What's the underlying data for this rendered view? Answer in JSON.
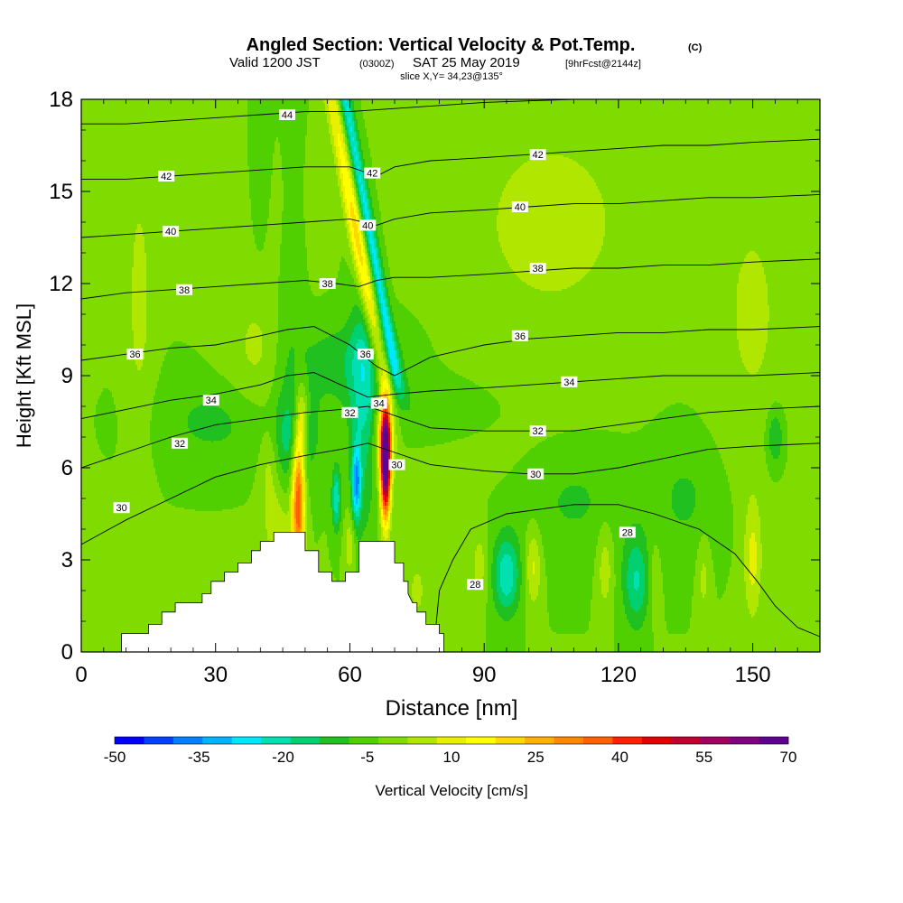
{
  "chart_data": {
    "type": "heatmap",
    "title": "Angled Section: Vertical Velocity & Pot.Temp.",
    "title_mark": "(C)",
    "subtitle": {
      "valid_prefix": "Valid 1200 JST",
      "utc": "(0300Z)",
      "date": "SAT 25 May 2019",
      "forecast": "[9hrFcst@2144z]"
    },
    "slice": "slice X,Y= 34,23@135°",
    "xlabel": "Distance [nm]",
    "ylabel": "Height [Kft MSL]",
    "xlim": [
      0,
      165
    ],
    "ylim": [
      0,
      18
    ],
    "x_ticks": [
      0,
      30,
      60,
      90,
      120,
      150
    ],
    "y_ticks": [
      0,
      3,
      6,
      9,
      12,
      15,
      18
    ],
    "colorbar": {
      "label": "Vertical Velocity [cm/s]",
      "tick_labels": [
        "-50",
        "-35",
        "-20",
        "-5",
        "10",
        "25",
        "40",
        "55",
        "70"
      ],
      "tick_values": [
        -50,
        -35,
        -20,
        -5,
        10,
        25,
        40,
        55,
        70
      ],
      "colors": [
        "#0000ff",
        "#0040ff",
        "#0080ff",
        "#00b4ff",
        "#00e8ff",
        "#00e0b0",
        "#00d070",
        "#20c020",
        "#50d000",
        "#80dc00",
        "#b0e600",
        "#e8f000",
        "#ffff00",
        "#ffd800",
        "#ffb000",
        "#ff8800",
        "#ff6000",
        "#ff2000",
        "#e00000",
        "#c00030",
        "#a00060",
        "#800080",
        "#600090"
      ]
    },
    "background_field_value": -3,
    "velocity_features": [
      {
        "x": 13,
        "y": 11.5,
        "sx": 3,
        "sy": 4.5,
        "value": 7
      },
      {
        "x": 43,
        "y": 13.5,
        "sx": 7,
        "sy": 3.5,
        "value": 7
      },
      {
        "x": 105,
        "y": 14,
        "sx": 22,
        "sy": 4,
        "value": 7
      },
      {
        "x": 150,
        "y": 11,
        "sx": 9,
        "sy": 5,
        "value": 6
      },
      {
        "x": 40,
        "y": 9.5,
        "sx": 8,
        "sy": 2,
        "value": 6
      },
      {
        "x": 44,
        "y": 4,
        "sx": 3,
        "sy": 1.2,
        "value": 9
      },
      {
        "x": 8,
        "y": 1.5,
        "sx": 5,
        "sy": 1.5,
        "value": 5
      },
      {
        "x": 90,
        "y": 8,
        "sx": 25,
        "sy": 2,
        "value": 4
      },
      {
        "x": 46,
        "y": 12,
        "sx": 4,
        "sy": 5,
        "value": -8
      },
      {
        "x": 40,
        "y": 15,
        "sx": 2.5,
        "sy": 3,
        "value": -8
      },
      {
        "x": 60,
        "y": 9.5,
        "sx": 14,
        "sy": 1.3,
        "value": -9
      },
      {
        "x": 80,
        "y": 8,
        "sx": 20,
        "sy": 1.2,
        "value": -7
      },
      {
        "x": 30,
        "y": 7.5,
        "sx": 12,
        "sy": 1.3,
        "value": -7
      },
      {
        "x": 63,
        "y": 8,
        "sx": 3,
        "sy": 4,
        "value": -14
      },
      {
        "x": 48,
        "y": 7,
        "sx": 5,
        "sy": 1.5,
        "value": -12
      },
      {
        "x": 95,
        "y": 2.5,
        "sx": 3,
        "sy": 1.3,
        "value": -20
      },
      {
        "x": 124,
        "y": 2.3,
        "sx": 3,
        "sy": 1.5,
        "value": -16
      },
      {
        "x": 155,
        "y": 7,
        "sx": 2,
        "sy": 1,
        "value": -12
      },
      {
        "x": 110,
        "y": 5,
        "sx": 12,
        "sy": 2,
        "value": -6
      },
      {
        "x": 135,
        "y": 5,
        "sx": 8,
        "sy": 2,
        "value": -6
      },
      {
        "x": 101,
        "y": 2.8,
        "sx": 1.8,
        "sy": 1.3,
        "value": 12
      },
      {
        "x": 117,
        "y": 2.8,
        "sx": 1.8,
        "sy": 1.5,
        "value": 9
      },
      {
        "x": 89,
        "y": 2.8,
        "sx": 1.8,
        "sy": 1.2,
        "value": 8
      },
      {
        "x": 150,
        "y": 3,
        "sx": 2,
        "sy": 2,
        "value": 12
      },
      {
        "x": 139,
        "y": 2.5,
        "sx": 1.5,
        "sy": 1.5,
        "value": 7
      },
      {
        "x": 128,
        "y": 2.5,
        "sx": 1.5,
        "sy": 1.5,
        "value": 5
      },
      {
        "x": 42,
        "y": 6,
        "sx": 2,
        "sy": 1.5,
        "value": 8
      },
      {
        "x": 60,
        "y": 3.5,
        "sx": 1.2,
        "sy": 1,
        "value": 10
      },
      {
        "x": 75,
        "y": 2,
        "sx": 2,
        "sy": 1,
        "value": 7
      },
      {
        "x": 48.5,
        "y": 5,
        "sx": 1.4,
        "sy": 2.5,
        "value": 42
      },
      {
        "x": 49.5,
        "y": 7.5,
        "sx": 1.2,
        "sy": 1.2,
        "value": 15
      },
      {
        "x": 68,
        "y": 6.2,
        "sx": 1.1,
        "sy": 1.8,
        "value": 78
      },
      {
        "x": 68,
        "y": 7.2,
        "sx": 2.2,
        "sy": 1.3,
        "value": 20
      },
      {
        "x": 61.5,
        "y": 5.5,
        "sx": 1,
        "sy": 1.2,
        "value": -28
      },
      {
        "x": 57,
        "y": 5,
        "sx": 1,
        "sy": 1,
        "value": -20
      }
    ],
    "jet": [
      {
        "y": 8.5,
        "x": 68
      },
      {
        "y": 18,
        "x": 56
      }
    ],
    "jet_center_value": 25,
    "jet_wing": {
      "offset": 3,
      "value": -22
    },
    "theta_contours": [
      {
        "label": "28",
        "points": [
          [
            79,
            0.5
          ],
          [
            80,
            2
          ],
          [
            83,
            3
          ],
          [
            87,
            4
          ],
          [
            95,
            4.5
          ],
          [
            110,
            4.8
          ],
          [
            120,
            4.8
          ],
          [
            128,
            4.5
          ],
          [
            138,
            4
          ],
          [
            146,
            3.2
          ],
          [
            151,
            2.3
          ],
          [
            155,
            1.5
          ],
          [
            160,
            0.8
          ],
          [
            165,
            0.5
          ]
        ],
        "labels_at": [
          [
            88,
            2.2
          ],
          [
            122,
            3.9
          ]
        ]
      },
      {
        "label": "30",
        "points": [
          [
            0,
            3.5
          ],
          [
            10,
            4.3
          ],
          [
            20,
            5
          ],
          [
            30,
            5.7
          ],
          [
            40,
            6.1
          ],
          [
            50,
            6.4
          ],
          [
            58,
            6.6
          ],
          [
            64,
            6.8
          ],
          [
            70,
            6.5
          ],
          [
            78,
            6.1
          ],
          [
            90,
            5.9
          ],
          [
            100,
            5.8
          ],
          [
            110,
            5.8
          ],
          [
            120,
            6
          ],
          [
            130,
            6.3
          ],
          [
            140,
            6.6
          ],
          [
            150,
            6.7
          ],
          [
            165,
            6.8
          ]
        ],
        "labels_at": [
          [
            9,
            4.7
          ],
          [
            70.5,
            6.1
          ],
          [
            101.5,
            5.8
          ]
        ]
      },
      {
        "label": "32",
        "points": [
          [
            0,
            6
          ],
          [
            10,
            6.5
          ],
          [
            20,
            7
          ],
          [
            30,
            7.4
          ],
          [
            40,
            7.6
          ],
          [
            50,
            7.8
          ],
          [
            58,
            7.9
          ],
          [
            64,
            8
          ],
          [
            70,
            7.7
          ],
          [
            78,
            7.3
          ],
          [
            90,
            7.2
          ],
          [
            100,
            7.2
          ],
          [
            110,
            7.2
          ],
          [
            120,
            7.4
          ],
          [
            130,
            7.6
          ],
          [
            140,
            7.8
          ],
          [
            150,
            7.9
          ],
          [
            165,
            8
          ]
        ],
        "labels_at": [
          [
            22,
            6.8
          ],
          [
            60,
            7.8
          ],
          [
            102,
            7.2
          ]
        ]
      },
      {
        "label": "34",
        "points": [
          [
            0,
            7.6
          ],
          [
            10,
            7.9
          ],
          [
            20,
            8.2
          ],
          [
            30,
            8.4
          ],
          [
            40,
            8.7
          ],
          [
            46,
            9
          ],
          [
            52,
            9.1
          ],
          [
            58,
            8.7
          ],
          [
            64,
            8.3
          ],
          [
            70,
            8.4
          ],
          [
            78,
            8.5
          ],
          [
            90,
            8.6
          ],
          [
            100,
            8.7
          ],
          [
            110,
            8.8
          ],
          [
            120,
            8.9
          ],
          [
            130,
            9
          ],
          [
            140,
            9
          ],
          [
            150,
            9
          ],
          [
            165,
            9.1
          ]
        ],
        "labels_at": [
          [
            29,
            8.2
          ],
          [
            66.5,
            8.1
          ],
          [
            109,
            8.8
          ]
        ]
      },
      {
        "label": "36",
        "points": [
          [
            0,
            9.5
          ],
          [
            10,
            9.7
          ],
          [
            20,
            9.9
          ],
          [
            30,
            10
          ],
          [
            40,
            10.3
          ],
          [
            46,
            10.5
          ],
          [
            52,
            10.6
          ],
          [
            60,
            10
          ],
          [
            66,
            9.3
          ],
          [
            70,
            9
          ],
          [
            78,
            9.6
          ],
          [
            90,
            10
          ],
          [
            100,
            10.2
          ],
          [
            110,
            10.3
          ],
          [
            120,
            10.4
          ],
          [
            130,
            10.4
          ],
          [
            140,
            10.5
          ],
          [
            150,
            10.5
          ],
          [
            165,
            10.6
          ]
        ],
        "labels_at": [
          [
            12,
            9.7
          ],
          [
            63.5,
            9.7
          ],
          [
            98,
            10.3
          ]
        ]
      },
      {
        "label": "38",
        "points": [
          [
            0,
            11.5
          ],
          [
            10,
            11.7
          ],
          [
            20,
            11.8
          ],
          [
            30,
            11.9
          ],
          [
            40,
            12
          ],
          [
            50,
            12.1
          ],
          [
            57,
            12
          ],
          [
            62,
            11.9
          ],
          [
            66,
            12.1
          ],
          [
            70,
            12.2
          ],
          [
            78,
            12.2
          ],
          [
            90,
            12.3
          ],
          [
            100,
            12.4
          ],
          [
            110,
            12.5
          ],
          [
            120,
            12.5
          ],
          [
            130,
            12.6
          ],
          [
            140,
            12.6
          ],
          [
            150,
            12.7
          ],
          [
            165,
            12.8
          ]
        ],
        "labels_at": [
          [
            23,
            11.8
          ],
          [
            55,
            12
          ],
          [
            102,
            12.5
          ]
        ]
      },
      {
        "label": "40",
        "points": [
          [
            0,
            13.5
          ],
          [
            10,
            13.6
          ],
          [
            20,
            13.7
          ],
          [
            30,
            13.8
          ],
          [
            40,
            13.9
          ],
          [
            50,
            14
          ],
          [
            60,
            14.1
          ],
          [
            66,
            13.9
          ],
          [
            70,
            14.1
          ],
          [
            78,
            14.3
          ],
          [
            90,
            14.4
          ],
          [
            100,
            14.5
          ],
          [
            110,
            14.6
          ],
          [
            120,
            14.6
          ],
          [
            130,
            14.7
          ],
          [
            140,
            14.8
          ],
          [
            150,
            14.8
          ],
          [
            165,
            14.9
          ]
        ],
        "labels_at": [
          [
            20,
            13.7
          ],
          [
            64,
            13.9
          ],
          [
            98,
            14.5
          ]
        ]
      },
      {
        "label": "42",
        "points": [
          [
            0,
            15.4
          ],
          [
            10,
            15.4
          ],
          [
            20,
            15.5
          ],
          [
            30,
            15.6
          ],
          [
            40,
            15.7
          ],
          [
            50,
            15.8
          ],
          [
            60,
            15.8
          ],
          [
            66,
            15.5
          ],
          [
            70,
            15.8
          ],
          [
            78,
            16
          ],
          [
            90,
            16.1
          ],
          [
            100,
            16.2
          ],
          [
            110,
            16.3
          ],
          [
            120,
            16.4
          ],
          [
            130,
            16.5
          ],
          [
            140,
            16.5
          ],
          [
            150,
            16.6
          ],
          [
            165,
            16.7
          ]
        ],
        "labels_at": [
          [
            19,
            15.5
          ],
          [
            65,
            15.6
          ],
          [
            102,
            16.2
          ]
        ]
      },
      {
        "label": "44",
        "points": [
          [
            0,
            17.2
          ],
          [
            10,
            17.2
          ],
          [
            20,
            17.3
          ],
          [
            30,
            17.4
          ],
          [
            40,
            17.5
          ],
          [
            50,
            17.6
          ],
          [
            60,
            17.6
          ],
          [
            70,
            17.7
          ],
          [
            80,
            17.8
          ],
          [
            90,
            17.9
          ],
          [
            100,
            17.95
          ],
          [
            110,
            18
          ]
        ],
        "labels_at": [
          [
            46,
            17.5
          ]
        ]
      }
    ],
    "terrain": [
      [
        0,
        0
      ],
      [
        9,
        0
      ],
      [
        9,
        0.6
      ],
      [
        15,
        0.6
      ],
      [
        15,
        0.9
      ],
      [
        18,
        0.9
      ],
      [
        18,
        1.3
      ],
      [
        21,
        1.3
      ],
      [
        21,
        1.6
      ],
      [
        27,
        1.6
      ],
      [
        27,
        1.9
      ],
      [
        29,
        1.9
      ],
      [
        29,
        2.3
      ],
      [
        32,
        2.3
      ],
      [
        32,
        2.6
      ],
      [
        35,
        2.6
      ],
      [
        35,
        2.9
      ],
      [
        38,
        2.9
      ],
      [
        38,
        3.3
      ],
      [
        40,
        3.3
      ],
      [
        40,
        3.6
      ],
      [
        43,
        3.6
      ],
      [
        43,
        3.9
      ],
      [
        50,
        3.9
      ],
      [
        50,
        3.3
      ],
      [
        53,
        3.3
      ],
      [
        53,
        2.6
      ],
      [
        56,
        2.6
      ],
      [
        56,
        2.3
      ],
      [
        59,
        2.3
      ],
      [
        59,
        2.6
      ],
      [
        62,
        2.6
      ],
      [
        62,
        3.6
      ],
      [
        67,
        3.6
      ],
      [
        67,
        3.6
      ],
      [
        70,
        3.6
      ],
      [
        70,
        2.9
      ],
      [
        72,
        2.9
      ],
      [
        72,
        2.3
      ],
      [
        73,
        2.3
      ],
      [
        73,
        1.9
      ],
      [
        74,
        1.6
      ],
      [
        75,
        1.6
      ],
      [
        75,
        1.3
      ],
      [
        77,
        1.3
      ],
      [
        77,
        0.9
      ],
      [
        80,
        0.9
      ],
      [
        80,
        0.6
      ],
      [
        81,
        0.6
      ],
      [
        81,
        0
      ],
      [
        165,
        0
      ]
    ]
  }
}
